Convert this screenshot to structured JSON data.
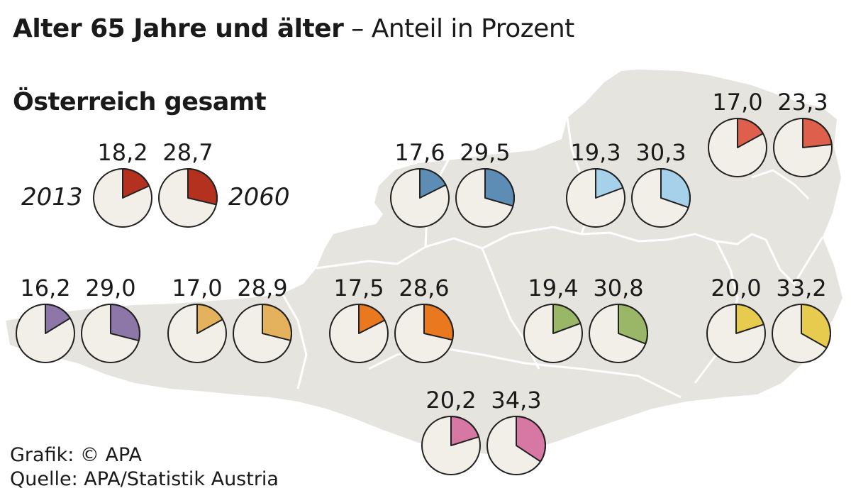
{
  "title": {
    "main": "Alter 65 Jahre und älter",
    "suffix": "– Anteil in Prozent"
  },
  "subtitle": "Österreich gesamt",
  "years": {
    "left": "2013",
    "right": "2060"
  },
  "credits": {
    "graphic": "Grafik: © APA",
    "source": "Quelle: APA/Statistik Austria"
  },
  "colors": {
    "map_fill": "#e6e4de",
    "pie_background": "#f2efe8",
    "pie_outline": "#222222"
  },
  "chart_data": {
    "type": "pie",
    "unit": "Prozent",
    "groups": [
      {
        "values": [
          18.2,
          28.7
        ],
        "color": "#b5311f"
      },
      {
        "values": [
          17.6,
          29.5
        ],
        "color": "#5d8db5"
      },
      {
        "values": [
          19.3,
          30.3
        ],
        "color": "#a7d1ea"
      },
      {
        "values": [
          17.0,
          23.3
        ],
        "color": "#de5f4b"
      },
      {
        "values": [
          16.2,
          29.0
        ],
        "color": "#8d76a8"
      },
      {
        "values": [
          17.0,
          28.9
        ],
        "color": "#e4b25c"
      },
      {
        "values": [
          17.5,
          28.6
        ],
        "color": "#e9781e"
      },
      {
        "values": [
          19.4,
          30.8
        ],
        "color": "#9ab767"
      },
      {
        "values": [
          20.0,
          33.2
        ],
        "color": "#e6cb4f"
      },
      {
        "values": [
          20.2,
          34.3
        ],
        "color": "#d677a4"
      }
    ]
  }
}
